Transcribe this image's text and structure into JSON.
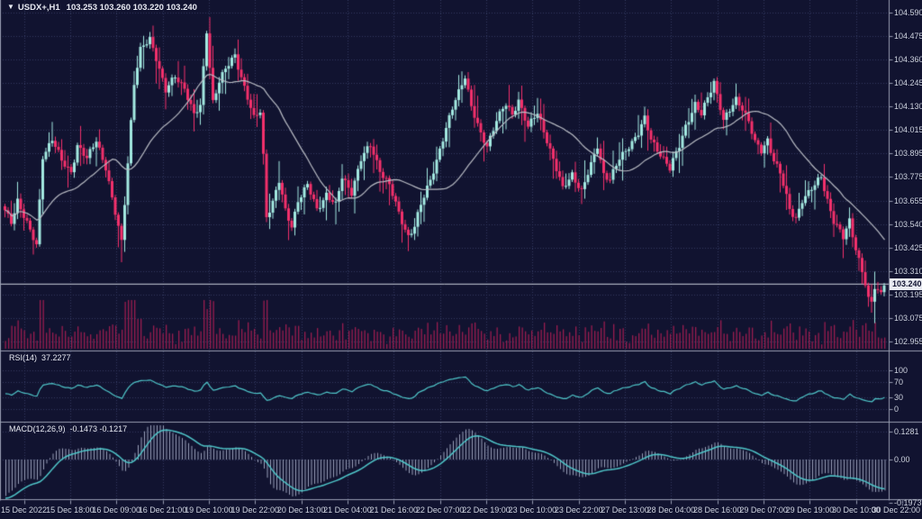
{
  "window": {
    "symbol_period": "USDX+,H1",
    "ohlc_text": "103.253 103.260 103.220 103.240",
    "current_price": "103.240"
  },
  "panes": {
    "rsi": {
      "label": "RSI(14)",
      "value": "37.2277"
    },
    "macd": {
      "label": "MACD(12,26,9)",
      "values": "-0.1473 -0.1217"
    }
  },
  "price_axis_labels": [
    "104.590",
    "104.475",
    "104.360",
    "104.245",
    "104.130",
    "104.015",
    "103.895",
    "103.775",
    "103.655",
    "103.540",
    "103.425",
    "103.310",
    "103.195",
    "103.075",
    "102.955"
  ],
  "rsi_axis_labels": [
    "100",
    "70",
    "30",
    "0"
  ],
  "macd_axis_labels": [
    "0.1281",
    "0.00",
    "-0.1973"
  ],
  "time_axis_labels": [
    "15 Dec 2022",
    "15 Dec 18:00",
    "16 Dec 09:00",
    "16 Dec 21:00",
    "19 Dec 10:00",
    "19 Dec 22:00",
    "20 Dec 13:00",
    "21 Dec 04:00",
    "21 Dec 16:00",
    "22 Dec 07:00",
    "22 Dec 19:00",
    "23 Dec 10:00",
    "23 Dec 22:00",
    "27 Dec 13:00",
    "28 Dec 04:00",
    "28 Dec 16:00",
    "29 Dec 07:00",
    "29 Dec 19:00",
    "30 Dec 10:00",
    "30 Dec 22:00"
  ],
  "colors": {
    "bg": "#111330",
    "grid": "#343a61",
    "bull": "#a3e9e1",
    "bear": "#f3306b",
    "volume": "#9a1d4f",
    "ma": "#b9bcc4",
    "indicator_line": "#4fc6c9",
    "histogram": "#99a0b8",
    "separator": "#979cb0",
    "axis_text": "#cdd2de",
    "title_text": "#e8eaf2",
    "price_line": "#cfd3dd",
    "tag_bg": "#e9ebf2",
    "tag_text": "#101230"
  },
  "chart_data": {
    "type": "candlestick",
    "symbol": "USDX+",
    "timeframe": "H1",
    "last_bar_ohlc": {
      "open": 103.253,
      "high": 103.26,
      "low": 103.22,
      "close": 103.24
    },
    "current_price": 103.24,
    "price_axis_range": [
      102.955,
      104.59
    ],
    "bars": 280,
    "close_waypoints": [
      [
        0,
        103.6
      ],
      [
        2,
        103.55
      ],
      [
        4,
        103.66
      ],
      [
        6,
        103.58
      ],
      [
        8,
        103.5
      ],
      [
        10,
        103.43
      ],
      [
        12,
        103.88
      ],
      [
        15,
        103.96
      ],
      [
        18,
        103.85
      ],
      [
        21,
        103.8
      ],
      [
        23,
        103.93
      ],
      [
        26,
        103.86
      ],
      [
        29,
        103.96
      ],
      [
        32,
        103.82
      ],
      [
        34,
        103.66
      ],
      [
        37,
        103.45
      ],
      [
        40,
        104.05
      ],
      [
        41,
        104.24
      ],
      [
        43,
        104.4
      ],
      [
        46,
        104.46
      ],
      [
        48,
        104.37
      ],
      [
        51,
        104.2
      ],
      [
        54,
        104.27
      ],
      [
        57,
        104.22
      ],
      [
        60,
        104.08
      ],
      [
        62,
        104.12
      ],
      [
        64,
        104.5
      ],
      [
        66,
        104.15
      ],
      [
        68,
        104.25
      ],
      [
        71,
        104.33
      ],
      [
        73,
        104.38
      ],
      [
        76,
        104.22
      ],
      [
        79,
        104.06
      ],
      [
        81,
        104.1
      ],
      [
        82,
        103.88
      ],
      [
        83,
        103.58
      ],
      [
        85,
        103.65
      ],
      [
        87,
        103.75
      ],
      [
        89,
        103.6
      ],
      [
        91,
        103.53
      ],
      [
        93,
        103.66
      ],
      [
        96,
        103.73
      ],
      [
        99,
        103.61
      ],
      [
        102,
        103.69
      ],
      [
        105,
        103.63
      ],
      [
        107,
        103.77
      ],
      [
        110,
        103.7
      ],
      [
        113,
        103.86
      ],
      [
        116,
        103.93
      ],
      [
        119,
        103.81
      ],
      [
        122,
        103.73
      ],
      [
        125,
        103.59
      ],
      [
        128,
        103.48
      ],
      [
        130,
        103.53
      ],
      [
        132,
        103.63
      ],
      [
        135,
        103.76
      ],
      [
        138,
        103.91
      ],
      [
        141,
        104.06
      ],
      [
        143,
        104.16
      ],
      [
        146,
        104.28
      ],
      [
        148,
        104.12
      ],
      [
        151,
        103.98
      ],
      [
        153,
        103.93
      ],
      [
        156,
        104.06
      ],
      [
        159,
        104.13
      ],
      [
        161,
        104.08
      ],
      [
        163,
        104.16
      ],
      [
        166,
        104.02
      ],
      [
        169,
        104.09
      ],
      [
        172,
        103.96
      ],
      [
        174,
        103.86
      ],
      [
        177,
        103.71
      ],
      [
        180,
        103.79
      ],
      [
        183,
        103.7
      ],
      [
        186,
        103.83
      ],
      [
        188,
        103.93
      ],
      [
        190,
        103.79
      ],
      [
        192,
        103.76
      ],
      [
        195,
        103.86
      ],
      [
        198,
        103.93
      ],
      [
        201,
        103.99
      ],
      [
        203,
        104.06
      ],
      [
        205,
        103.96
      ],
      [
        208,
        103.89
      ],
      [
        211,
        103.81
      ],
      [
        214,
        103.93
      ],
      [
        216,
        104.03
      ],
      [
        219,
        104.13
      ],
      [
        221,
        104.08
      ],
      [
        223,
        104.17
      ],
      [
        225,
        104.25
      ],
      [
        227,
        104.12
      ],
      [
        228,
        104.05
      ],
      [
        230,
        104.1
      ],
      [
        232,
        104.16
      ],
      [
        234,
        104.12
      ],
      [
        236,
        104.05
      ],
      [
        238,
        103.94
      ],
      [
        240,
        103.9
      ],
      [
        242,
        103.96
      ],
      [
        244,
        103.86
      ],
      [
        246,
        103.79
      ],
      [
        249,
        103.61
      ],
      [
        251,
        103.57
      ],
      [
        253,
        103.66
      ],
      [
        255,
        103.69
      ],
      [
        257,
        103.73
      ],
      [
        259,
        103.78
      ],
      [
        261,
        103.66
      ],
      [
        263,
        103.55
      ],
      [
        266,
        103.47
      ],
      [
        268,
        103.56
      ],
      [
        270,
        103.42
      ],
      [
        272,
        103.3
      ],
      [
        274,
        103.17
      ],
      [
        275,
        103.15
      ],
      [
        276,
        103.22
      ],
      [
        278,
        103.2
      ],
      [
        279,
        103.24
      ]
    ],
    "overlays": [
      {
        "name": "Moving Average",
        "period": 24
      }
    ],
    "indicators": [
      {
        "name": "RSI",
        "period": 14,
        "last_value": 37.2277,
        "levels": [
          100,
          70,
          30,
          0
        ]
      },
      {
        "name": "MACD",
        "fast": 12,
        "slow": 26,
        "signal": 9,
        "last_values": [
          -0.1473,
          -0.1217
        ],
        "scale_max": 0.1281,
        "scale_min": -0.1973
      }
    ],
    "volume": "histogram shown at bottom of main pane"
  }
}
